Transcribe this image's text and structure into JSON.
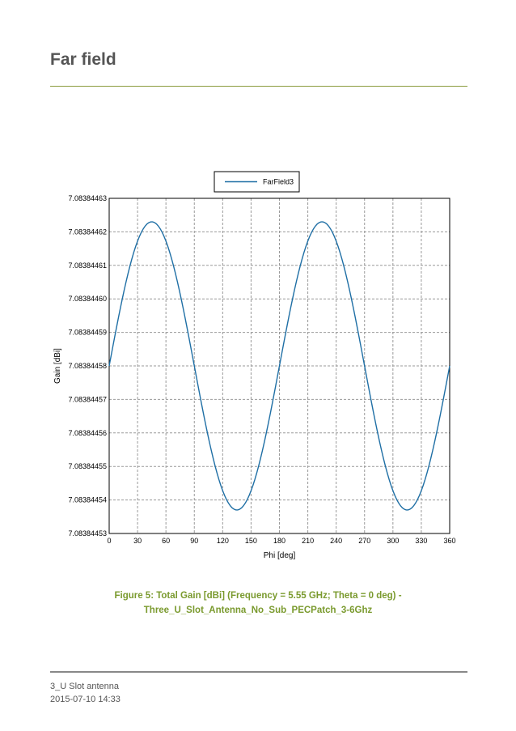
{
  "page": {
    "section_title": "Far field",
    "caption_line1": "Figure 5: Total Gain [dBi] (Frequency = 5.55 GHz; Theta = 0 deg) -",
    "caption_line2": "Three_U_Slot_Antenna_No_Sub_PECPatch_3-6Ghz",
    "footer_doc": "3_U Slot antenna",
    "footer_date": "2015-07-10 14:33"
  },
  "colors": {
    "series": "#1f6fa5",
    "accent": "#7a9a2e",
    "rule": "#8a9a3c"
  },
  "chart_data": {
    "type": "line",
    "title": "",
    "xlabel": "Phi [deg]",
    "ylabel": "Gain [dBi]",
    "xlim": [
      0,
      360
    ],
    "ylim": [
      7.08384453,
      7.08384463
    ],
    "x_ticks": [
      "0",
      "30",
      "60",
      "90",
      "120",
      "150",
      "180",
      "210",
      "240",
      "270",
      "300",
      "330",
      "360"
    ],
    "y_ticks": [
      "7.08384453",
      "7.08384454",
      "7.08384455",
      "7.08384456",
      "7.08384457",
      "7.08384458",
      "7.08384459",
      "7.08384460",
      "7.08384461",
      "7.08384462",
      "7.08384463"
    ],
    "grid": true,
    "legend": "top-center",
    "series": [
      {
        "name": "FarField3",
        "x": [
          0,
          15,
          30,
          45,
          60,
          75,
          90,
          105,
          120,
          135,
          150,
          165,
          180,
          195,
          210,
          225,
          240,
          255,
          270,
          285,
          300,
          315,
          330,
          345,
          360
        ],
        "values": [
          7.08384458,
          7.083844603,
          7.083844619,
          7.083844623,
          7.083844619,
          7.083844603,
          7.08384458,
          7.083844557,
          7.083844541,
          7.083844537,
          7.083844541,
          7.083844557,
          7.08384458,
          7.083844603,
          7.083844619,
          7.083844623,
          7.083844619,
          7.083844603,
          7.08384458,
          7.083844557,
          7.083844541,
          7.083844537,
          7.083844541,
          7.083844557,
          7.08384458
        ]
      }
    ]
  }
}
